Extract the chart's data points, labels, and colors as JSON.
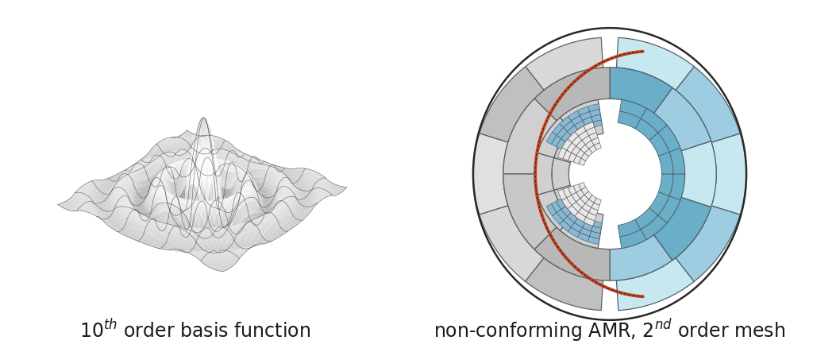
{
  "left_caption": "10",
  "left_caption_sup": "th",
  "left_caption_rest": " order basis function",
  "right_caption": "non-conforming AMR, 2",
  "right_caption_sup": "nd",
  "right_caption_rest": " order mesh",
  "caption_fontsize": 17,
  "caption_color": "#1a1a1a",
  "background_color": "#ffffff",
  "surface_n": 120,
  "surface_xrange": [
    -5,
    5
  ],
  "surface_yrange": [
    -5,
    5
  ],
  "elev": 28,
  "azim": -52,
  "grid_n": 9,
  "gray_light": "#e8e8e8",
  "gray_mid": "#c0c0c0",
  "gray_dark": "#909090",
  "blue_light": "#c8e8f0",
  "blue_mid": "#9ecce0",
  "blue_dark": "#6aaec8",
  "interface_orange": "#d04000",
  "interface_blue": "#1030a0",
  "edge_color_gray": "#606060",
  "edge_color_blue": "#506070"
}
